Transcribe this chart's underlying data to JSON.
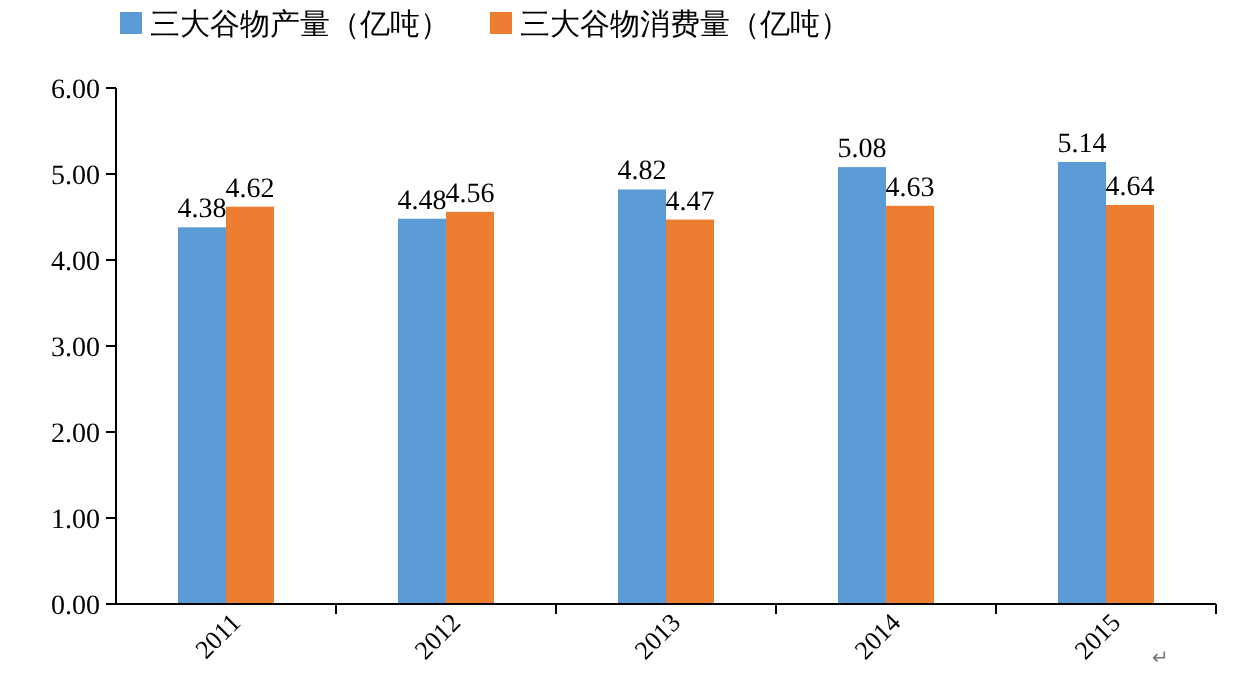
{
  "chart_data": {
    "type": "bar",
    "categories": [
      "2011",
      "2012",
      "2013",
      "2014",
      "2015"
    ],
    "series": [
      {
        "name": "三大谷物产量（亿吨）",
        "color": "#5b9bd5",
        "values": [
          4.38,
          4.48,
          4.82,
          5.08,
          5.14
        ]
      },
      {
        "name": "三大谷物消费量（亿吨）",
        "color": "#ed7d31",
        "values": [
          4.62,
          4.56,
          4.47,
          4.63,
          4.64
        ]
      }
    ],
    "ylim": [
      0,
      6
    ],
    "yticks": [
      {
        "value": 0,
        "label": "0.00"
      },
      {
        "value": 1,
        "label": "1.00"
      },
      {
        "value": 2,
        "label": "2.00"
      },
      {
        "value": 3,
        "label": "3.00"
      },
      {
        "value": 4,
        "label": "4.00"
      },
      {
        "value": 5,
        "label": "5.00"
      },
      {
        "value": 6,
        "label": "6.00"
      }
    ],
    "data_labels": true,
    "legend": "top",
    "grid": false,
    "annotations": [
      "↵"
    ]
  }
}
